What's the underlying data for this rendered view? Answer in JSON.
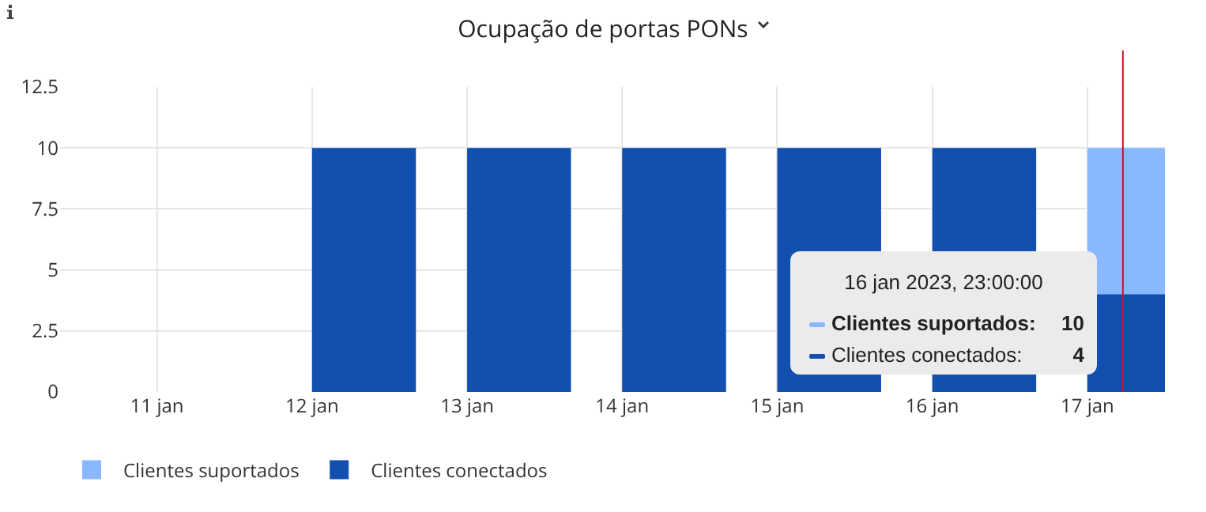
{
  "chart_data": {
    "type": "bar",
    "title": "Ocupação de portas PONs",
    "x": [
      "2023-01-12",
      "2023-01-13",
      "2023-01-14",
      "2023-01-15",
      "2023-01-16",
      "2023-01-17"
    ],
    "series": [
      {
        "name": "Clientes suportados",
        "color": "#8ab8ff",
        "values": [
          null,
          null,
          null,
          null,
          null,
          10
        ]
      },
      {
        "name": "Clientes conectados",
        "color": "#1250b0",
        "values": [
          10,
          10,
          10,
          10,
          10,
          4
        ]
      }
    ],
    "xlim": [
      "2023-01-10T09:00",
      "2023-01-17T12:00"
    ],
    "xticks": [
      {
        "value": "2023-01-11",
        "label": "11 jan"
      },
      {
        "value": "2023-01-12",
        "label": "12 jan"
      },
      {
        "value": "2023-01-13",
        "label": "13 jan"
      },
      {
        "value": "2023-01-14",
        "label": "14 jan"
      },
      {
        "value": "2023-01-15",
        "label": "15 jan"
      },
      {
        "value": "2023-01-16",
        "label": "16 jan"
      },
      {
        "value": "2023-01-17",
        "label": "17 jan"
      }
    ],
    "ylim": [
      0,
      12.5
    ],
    "yticks": [
      0,
      2.5,
      5,
      7.5,
      10,
      12.5
    ],
    "ref_lines": [
      {
        "axis": "x",
        "value": "2023-01-17T05:30",
        "color": "#c4162a"
      }
    ],
    "annotations": [
      "16 jan 2023, 23:00:00",
      "Clientes suportados:",
      "10",
      "Clientes conectados:",
      "4"
    ],
    "grid": true,
    "legend": "bottom left"
  }
}
